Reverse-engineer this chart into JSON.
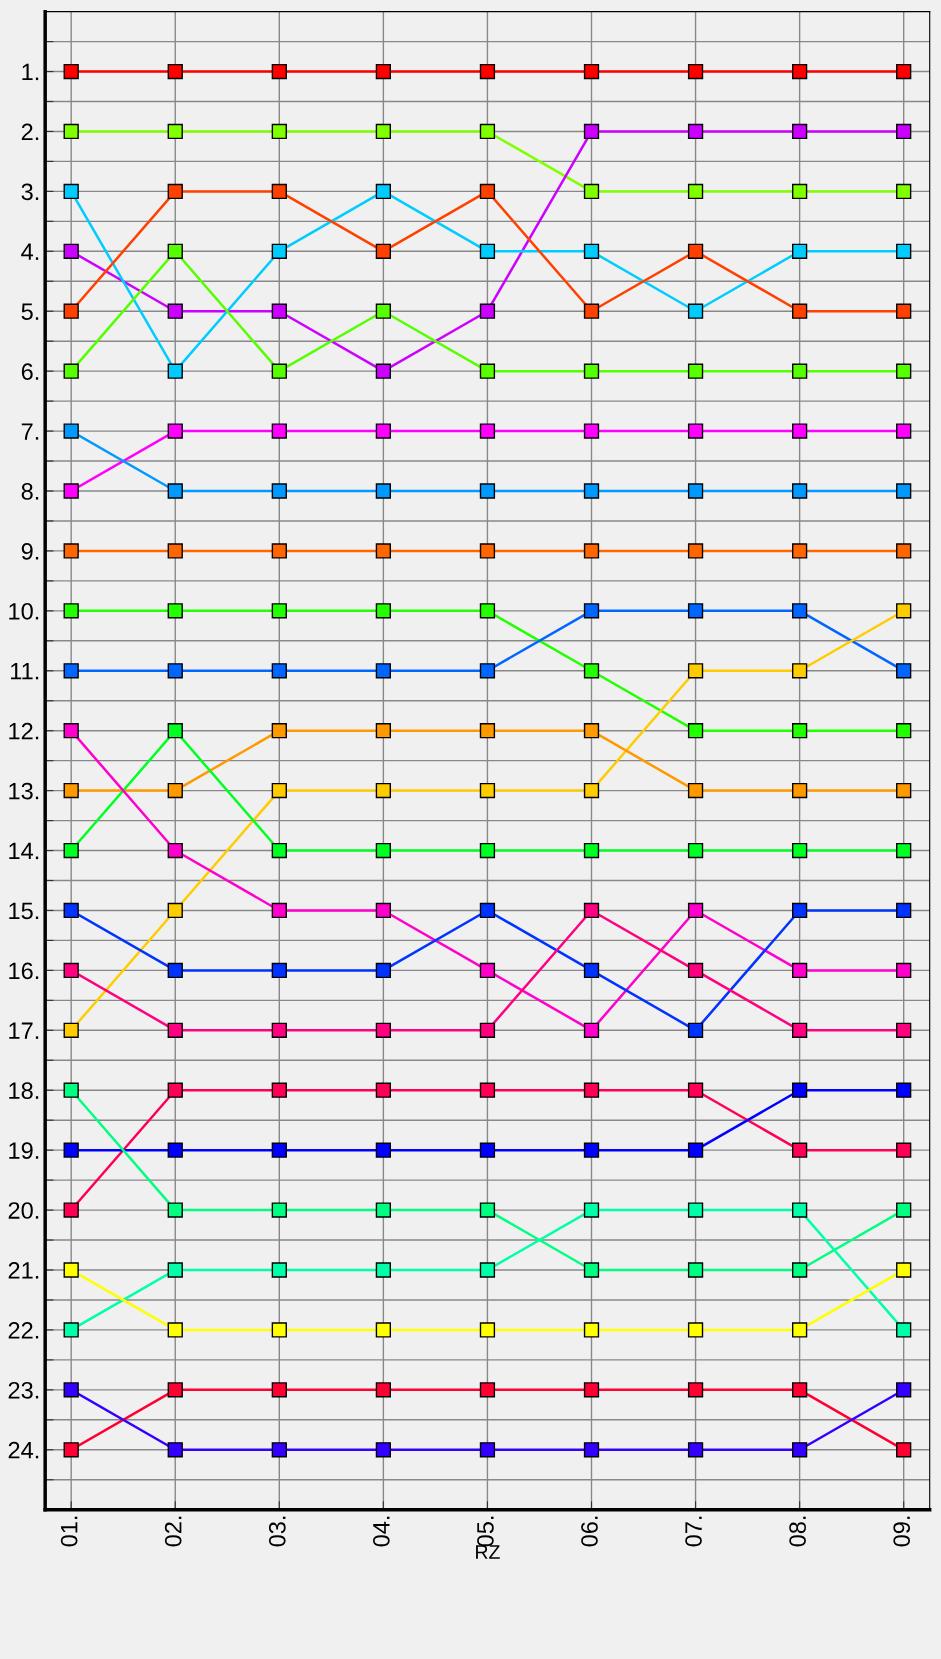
{
  "chart_data": {
    "type": "line",
    "xlabel": "RZ",
    "categories": [
      "01.",
      "02.",
      "03.",
      "04.",
      "05.",
      "06.",
      "07.",
      "08.",
      "09."
    ],
    "ylim": [
      25,
      0
    ],
    "yticks": [
      {
        "value": 1,
        "label": "1."
      },
      {
        "value": 2,
        "label": "2."
      },
      {
        "value": 3,
        "label": "3."
      },
      {
        "value": 4,
        "label": "4."
      },
      {
        "value": 5,
        "label": "5."
      },
      {
        "value": 6,
        "label": "6."
      },
      {
        "value": 7,
        "label": "7."
      },
      {
        "value": 8,
        "label": "8."
      },
      {
        "value": 9,
        "label": "9."
      },
      {
        "value": 10,
        "label": "10."
      },
      {
        "value": 11,
        "label": "11."
      },
      {
        "value": 12,
        "label": "12."
      },
      {
        "value": 13,
        "label": "13."
      },
      {
        "value": 14,
        "label": "14."
      },
      {
        "value": 15,
        "label": "15."
      },
      {
        "value": 16,
        "label": "16."
      },
      {
        "value": 17,
        "label": "17."
      },
      {
        "value": 18,
        "label": "18."
      },
      {
        "value": 19,
        "label": "19."
      },
      {
        "value": 20,
        "label": "20."
      },
      {
        "value": 21,
        "label": "21."
      },
      {
        "value": 22,
        "label": "22."
      },
      {
        "value": 23,
        "label": "23."
      },
      {
        "value": 24,
        "label": "24."
      },
      {
        "value": 0.5,
        "label": null
      },
      {
        "value": 1.5,
        "label": null
      },
      {
        "value": 2.5,
        "label": null
      },
      {
        "value": 3.5,
        "label": null
      },
      {
        "value": 4.5,
        "label": null
      },
      {
        "value": 5.5,
        "label": null
      },
      {
        "value": 6.5,
        "label": null
      },
      {
        "value": 7.5,
        "label": null
      },
      {
        "value": 8.5,
        "label": null
      },
      {
        "value": 9.5,
        "label": null
      },
      {
        "value": 10.5,
        "label": null
      },
      {
        "value": 11.5,
        "label": null
      },
      {
        "value": 12.5,
        "label": null
      },
      {
        "value": 13.5,
        "label": null
      },
      {
        "value": 14.5,
        "label": null
      },
      {
        "value": 15.5,
        "label": null
      },
      {
        "value": 16.5,
        "label": null
      },
      {
        "value": 17.5,
        "label": null
      },
      {
        "value": 18.5,
        "label": null
      },
      {
        "value": 19.5,
        "label": null
      },
      {
        "value": 20.5,
        "label": null
      },
      {
        "value": 21.5,
        "label": null
      },
      {
        "value": 22.5,
        "label": null
      },
      {
        "value": 23.5,
        "label": null
      },
      {
        "value": 24.5,
        "label": null
      }
    ],
    "grid": true,
    "marker": "square",
    "line_style": "solid",
    "series": [
      {
        "color": "#ff0000",
        "values": [
          1,
          1,
          1,
          1,
          1,
          1,
          1,
          1,
          1
        ]
      },
      {
        "color": "#80ff00",
        "values": [
          2,
          2,
          2,
          2,
          2,
          3,
          3,
          3,
          3
        ]
      },
      {
        "color": "#cc00ff",
        "values": [
          4,
          5,
          5,
          6,
          5,
          2,
          2,
          2,
          2
        ]
      },
      {
        "color": "#00ccff",
        "values": [
          3,
          6,
          4,
          3,
          4,
          4,
          5,
          4,
          4
        ]
      },
      {
        "color": "#ff4000",
        "values": [
          5,
          3,
          3,
          4,
          3,
          5,
          4,
          5,
          5
        ]
      },
      {
        "color": "#55ff00",
        "values": [
          6,
          4,
          6,
          5,
          6,
          6,
          6,
          6,
          6
        ]
      },
      {
        "color": "#ff00ff",
        "values": [
          8,
          7,
          7,
          7,
          7,
          7,
          7,
          7,
          7
        ]
      },
      {
        "color": "#0099ff",
        "values": [
          7,
          8,
          8,
          8,
          8,
          8,
          8,
          8,
          8
        ]
      },
      {
        "color": "#ff6600",
        "values": [
          9,
          9,
          9,
          9,
          9,
          9,
          9,
          9,
          9
        ]
      },
      {
        "color": "#22ff00",
        "values": [
          10,
          10,
          10,
          10,
          10,
          11,
          12,
          12,
          12
        ]
      },
      {
        "color": "#0066ff",
        "values": [
          11,
          11,
          11,
          11,
          11,
          10,
          10,
          10,
          11
        ]
      },
      {
        "color": "#ffcc00",
        "values": [
          17,
          15,
          13,
          13,
          13,
          13,
          11,
          11,
          10
        ]
      },
      {
        "color": "#ff9900",
        "values": [
          13,
          13,
          12,
          12,
          12,
          12,
          13,
          13,
          13
        ]
      },
      {
        "color": "#00ff22",
        "values": [
          14,
          12,
          14,
          14,
          14,
          14,
          14,
          14,
          14
        ]
      },
      {
        "color": "#ff00cc",
        "values": [
          12,
          14,
          15,
          15,
          16,
          17,
          15,
          16,
          16
        ]
      },
      {
        "color": "#0033ff",
        "values": [
          15,
          16,
          16,
          16,
          15,
          16,
          17,
          15,
          15
        ]
      },
      {
        "color": "#ff0080",
        "values": [
          16,
          17,
          17,
          17,
          17,
          15,
          16,
          17,
          17
        ]
      },
      {
        "color": "#ff0055",
        "values": [
          20,
          18,
          18,
          18,
          18,
          18,
          18,
          19,
          19
        ]
      },
      {
        "color": "#0000ff",
        "values": [
          19,
          19,
          19,
          19,
          19,
          19,
          19,
          18,
          18
        ]
      },
      {
        "color": "#00ff80",
        "values": [
          18,
          20,
          20,
          20,
          20,
          21,
          21,
          21,
          20
        ]
      },
      {
        "color": "#00ffaa",
        "values": [
          22,
          21,
          21,
          21,
          21,
          20,
          20,
          20,
          22
        ]
      },
      {
        "color": "#ffff00",
        "values": [
          21,
          22,
          22,
          22,
          22,
          22,
          22,
          22,
          21
        ]
      },
      {
        "color": "#ff0033",
        "values": [
          24,
          23,
          23,
          23,
          23,
          23,
          23,
          23,
          24
        ]
      },
      {
        "color": "#3300ff",
        "values": [
          23,
          24,
          24,
          24,
          24,
          24,
          24,
          24,
          23
        ]
      }
    ]
  }
}
